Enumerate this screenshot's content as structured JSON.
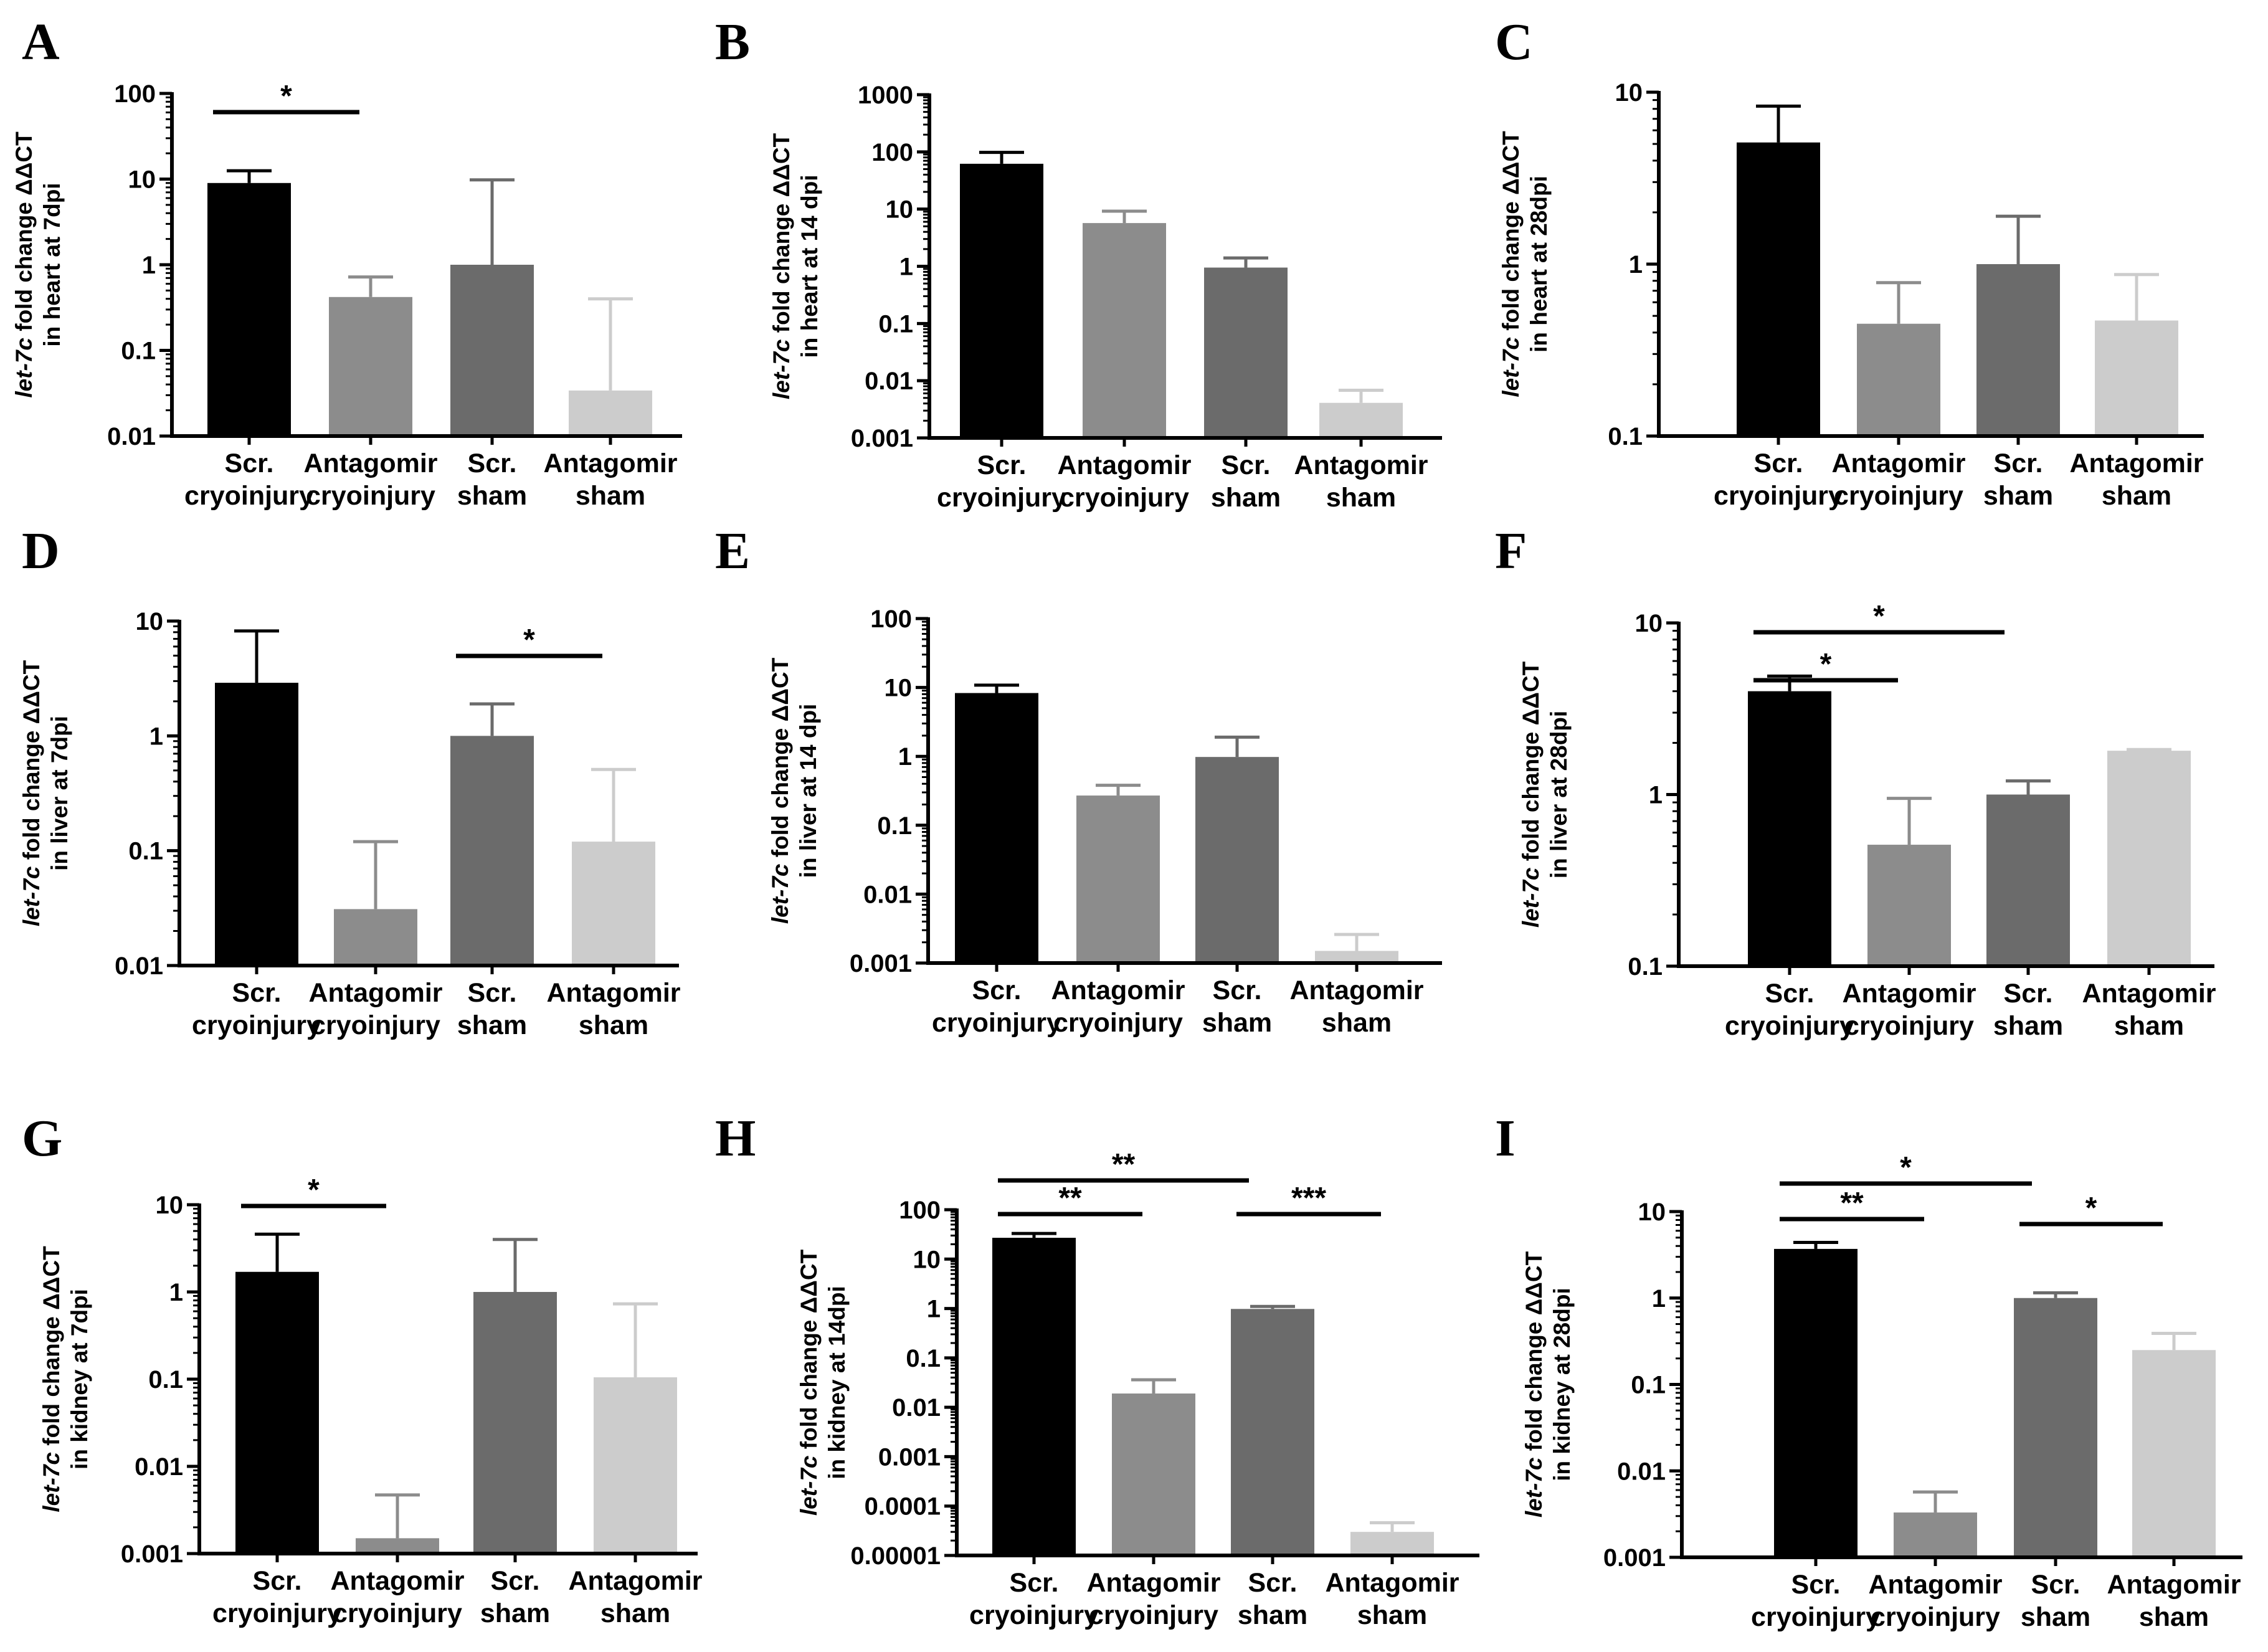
{
  "chart_data": [
    {
      "panel": "A",
      "type": "bar",
      "scale": "log",
      "ylabel": {
        "gene": "let-7c",
        "line1": " fold change ΔΔCT",
        "line2": "in heart at 7dpi"
      },
      "categories": [
        [
          "Scr.",
          "cryoinjury"
        ],
        [
          "Antagomir",
          "cryoinjury"
        ],
        [
          "Scr.",
          "sham"
        ],
        [
          "Antagomir",
          "sham"
        ]
      ],
      "values": [
        9,
        0.42,
        1.0,
        0.034
      ],
      "errors": [
        12.5,
        0.72,
        9.8,
        0.4
      ],
      "ylim": [
        0.01,
        100
      ],
      "yticks": [
        0.01,
        0.1,
        1,
        10,
        100
      ],
      "yticklabels": [
        "0.01",
        "0.1",
        "1",
        "10",
        "100"
      ],
      "colors": [
        "#000000",
        "#8c8c8c",
        "#6b6b6b",
        "#cccccc"
      ],
      "significance": [
        {
          "from": 0,
          "to": 1,
          "label": "*",
          "level": 30
        }
      ]
    },
    {
      "panel": "B",
      "type": "bar",
      "scale": "log",
      "ylabel": {
        "gene": "let-7c",
        "line1": " fold change ΔΔCT",
        "line2": "in heart at 14 dpi"
      },
      "categories": [
        [
          "Scr.",
          "cryoinjury"
        ],
        [
          "Antagomir",
          "cryoinjury"
        ],
        [
          "Scr.",
          "sham"
        ],
        [
          "Antagomir",
          "sham"
        ]
      ],
      "values": [
        62,
        5.7,
        0.95,
        0.0041
      ],
      "errors": [
        98,
        9.2,
        1.4,
        0.0068
      ],
      "ylim": [
        0.001,
        1000
      ],
      "yticks": [
        0.001,
        0.01,
        0.1,
        1,
        10,
        100,
        1000
      ],
      "yticklabels": [
        "0.001",
        "0.01",
        "0.1",
        "1",
        "10",
        "100",
        "1000"
      ],
      "colors": [
        "#000000",
        "#8c8c8c",
        "#6b6b6b",
        "#cccccc"
      ],
      "significance": []
    },
    {
      "panel": "C",
      "type": "bar",
      "scale": "log",
      "ylabel": {
        "gene": "let-7c",
        "line1": " fold change ΔΔCT",
        "line2": "in heart at 28dpi"
      },
      "categories": [
        [
          "Scr.",
          "cryoinjury"
        ],
        [
          "Antagomir",
          "cryoinjury"
        ],
        [
          "Scr.",
          "sham"
        ],
        [
          "Antagomir",
          "sham"
        ]
      ],
      "values": [
        5.1,
        0.45,
        1.0,
        0.47
      ],
      "errors": [
        8.3,
        0.78,
        1.9,
        0.87
      ],
      "ylim": [
        0.1,
        10
      ],
      "yticks": [
        0.1,
        1,
        10
      ],
      "yticklabels": [
        "0.1",
        "1",
        "10"
      ],
      "colors": [
        "#000000",
        "#8c8c8c",
        "#6b6b6b",
        "#cccccc"
      ],
      "significance": []
    },
    {
      "panel": "D",
      "type": "bar",
      "scale": "log",
      "ylabel": {
        "gene": "let-7c",
        "line1": " fold change ΔΔCT",
        "line2": "in liver at 7dpi"
      },
      "categories": [
        [
          "Scr.",
          "cryoinjury"
        ],
        [
          "Antagomir",
          "cryoinjury"
        ],
        [
          "Scr.",
          "sham"
        ],
        [
          "Antagomir",
          "sham"
        ]
      ],
      "values": [
        2.9,
        0.031,
        1.0,
        0.12
      ],
      "errors": [
        8.2,
        0.12,
        1.9,
        0.51
      ],
      "ylim": [
        0.01,
        10
      ],
      "yticks": [
        0.01,
        0.1,
        1,
        10
      ],
      "yticklabels": [
        "0.01",
        "0.1",
        "1",
        "10"
      ],
      "colors": [
        "#000000",
        "#8c8c8c",
        "#6b6b6b",
        "#cccccc"
      ],
      "significance": [
        {
          "from": 2,
          "to": 3,
          "label": "*",
          "level": 56
        }
      ]
    },
    {
      "panel": "E",
      "type": "bar",
      "scale": "log",
      "ylabel": {
        "gene": "let-7c",
        "line1": " fold change ΔΔCT",
        "line2": "in liver at 14 dpi"
      },
      "categories": [
        [
          "Scr.",
          "cryoinjury"
        ],
        [
          "Antagomir",
          "cryoinjury"
        ],
        [
          "Scr.",
          "sham"
        ],
        [
          "Antagomir",
          "sham"
        ]
      ],
      "values": [
        8.3,
        0.27,
        0.98,
        0.0015
      ],
      "errors": [
        10.8,
        0.38,
        1.9,
        0.0026
      ],
      "ylim": [
        0.001,
        100
      ],
      "yticks": [
        0.001,
        0.01,
        0.1,
        1,
        10,
        100
      ],
      "yticklabels": [
        "0.001",
        "0.01",
        "0.1",
        "1",
        "10",
        "100"
      ],
      "colors": [
        "#000000",
        "#8c8c8c",
        "#6b6b6b",
        "#cccccc"
      ],
      "significance": []
    },
    {
      "panel": "F",
      "type": "bar",
      "scale": "log",
      "ylabel": {
        "gene": "let-7c",
        "line1": " fold change ΔΔCT",
        "line2": "in liver at 28dpi"
      },
      "categories": [
        [
          "Scr.",
          "cryoinjury"
        ],
        [
          "Antagomir",
          "cryoinjury"
        ],
        [
          "Scr.",
          "sham"
        ],
        [
          "Antagomir",
          "sham"
        ]
      ],
      "values": [
        4.0,
        0.51,
        1.0,
        1.8
      ],
      "errors": [
        4.9,
        0.95,
        1.2,
        1.83
      ],
      "ylim": [
        0.1,
        10
      ],
      "yticks": [
        0.1,
        1,
        10
      ],
      "yticklabels": [
        "0.1",
        "1",
        "10"
      ],
      "colors": [
        "#000000",
        "#8c8c8c",
        "#6b6b6b",
        "#cccccc"
      ],
      "significance": [
        {
          "from": 0,
          "to": 1,
          "label": "*",
          "level": 92
        },
        {
          "from": 0,
          "to": 2,
          "label": "*",
          "level": 15
        }
      ]
    },
    {
      "panel": "G",
      "type": "bar",
      "scale": "log",
      "ylabel": {
        "gene": "let-7c",
        "line1": " fold change ΔΔCT",
        "line2": "in kidney at 7dpi"
      },
      "categories": [
        [
          "Scr.",
          "cryoinjury"
        ],
        [
          "Antagomir",
          "cryoinjury"
        ],
        [
          "Scr.",
          "sham"
        ],
        [
          "Antagomir",
          "sham"
        ]
      ],
      "values": [
        1.7,
        0.0015,
        1.0,
        0.105
      ],
      "errors": [
        4.6,
        0.0047,
        4.0,
        0.73
      ],
      "ylim": [
        0.001,
        10
      ],
      "yticks": [
        0.001,
        0.01,
        0.1,
        1,
        10
      ],
      "yticklabels": [
        "0.001",
        "0.01",
        "0.1",
        "1",
        "10"
      ],
      "colors": [
        "#000000",
        "#8c8c8c",
        "#6b6b6b",
        "#cccccc"
      ],
      "significance": [
        {
          "from": 0,
          "to": 1,
          "label": "*",
          "level": 2
        }
      ]
    },
    {
      "panel": "H",
      "type": "bar",
      "scale": "log",
      "ylabel": {
        "gene": "let-7c",
        "line1": " fold change ΔΔCT",
        "line2": "in kidney at 14dpi"
      },
      "categories": [
        [
          "Scr.",
          "cryoinjury"
        ],
        [
          "Antagomir",
          "cryoinjury"
        ],
        [
          "Scr.",
          "sham"
        ],
        [
          "Antagomir",
          "sham"
        ]
      ],
      "values": [
        27,
        0.019,
        0.98,
        3e-05
      ],
      "errors": [
        33,
        0.036,
        1.1,
        4.6e-05
      ],
      "ylim": [
        1e-05,
        100
      ],
      "yticks": [
        1e-05,
        0.0001,
        0.001,
        0.01,
        0.1,
        1,
        10,
        100
      ],
      "yticklabels": [
        "0.00001",
        "0.0001",
        "0.001",
        "0.01",
        "0.1",
        "1",
        "10",
        "100"
      ],
      "colors": [
        "#000000",
        "#8c8c8c",
        "#6b6b6b",
        "#cccccc"
      ],
      "significance": [
        {
          "from": 0,
          "to": 1,
          "label": "**",
          "level": 7
        },
        {
          "from": 0,
          "to": 2,
          "label": "**",
          "level": -47
        },
        {
          "from": 2,
          "to": 3,
          "label": "***",
          "level": 7
        }
      ]
    },
    {
      "panel": "I",
      "type": "bar",
      "scale": "log",
      "ylabel": {
        "gene": "let-7c",
        "line1": " fold change ΔΔCT",
        "line2": "in kidney at 28dpi"
      },
      "categories": [
        [
          "Scr.",
          "cryoinjury"
        ],
        [
          "Antagomir",
          "cryoinjury"
        ],
        [
          "Scr.",
          "sham"
        ],
        [
          "Antagomir",
          "sham"
        ]
      ],
      "values": [
        3.7,
        0.0033,
        1.0,
        0.25
      ],
      "errors": [
        4.4,
        0.0057,
        1.15,
        0.39
      ],
      "ylim": [
        0.001,
        10
      ],
      "yticks": [
        0.001,
        0.01,
        0.1,
        1,
        10
      ],
      "yticklabels": [
        "0.001",
        "0.01",
        "0.1",
        "1",
        "10"
      ],
      "colors": [
        "#000000",
        "#8c8c8c",
        "#6b6b6b",
        "#cccccc"
      ],
      "significance": [
        {
          "from": 0,
          "to": 1,
          "label": "**",
          "level": 12
        },
        {
          "from": 2,
          "to": 3,
          "label": "*",
          "level": 20
        },
        {
          "from": 0,
          "to": 2,
          "label": "*",
          "level": -45
        }
      ]
    }
  ]
}
